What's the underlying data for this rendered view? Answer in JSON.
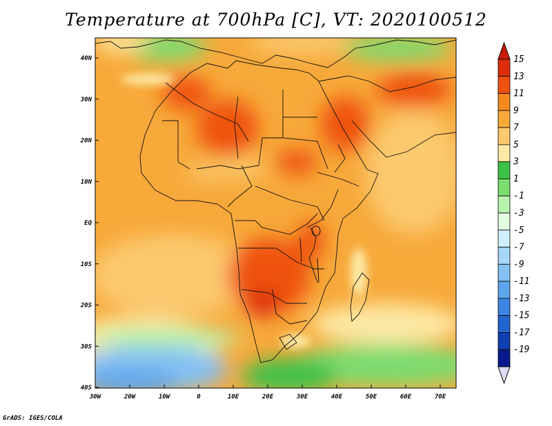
{
  "title": "Temperature at 700hPa [C], VT: 2020100512",
  "footer": "GrADS: IGES/COLA",
  "map": {
    "lat_labels": [
      "40N",
      "30N",
      "20N",
      "10N",
      "EQ",
      "10S",
      "20S",
      "30S",
      "40S"
    ],
    "lon_labels": [
      "30W",
      "20W",
      "10W",
      "0",
      "10E",
      "20E",
      "30E",
      "40E",
      "50E",
      "60E",
      "70E"
    ]
  },
  "colorbar": {
    "labels": [
      "15",
      "13",
      "11",
      "9",
      "7",
      "5",
      "3",
      "1",
      "-1",
      "-3",
      "-5",
      "-7",
      "-9",
      "-11",
      "-13",
      "-15",
      "-17",
      "-19"
    ],
    "colors": [
      "#dd2d0a",
      "#ef5210",
      "#f48a1e",
      "#f7a93a",
      "#fbc96e",
      "#fde9a5",
      "#3ec148",
      "#7cdc70",
      "#b6f3ad",
      "#e3fde0",
      "#cfeffd",
      "#a6d6f8",
      "#84c1f2",
      "#5ea6ec",
      "#3c85e3",
      "#2265d0",
      "#0f3fb0",
      "#0a1a8c"
    ],
    "top_color": "#cc1a05",
    "bottom_color": "#dcdcf0"
  }
}
